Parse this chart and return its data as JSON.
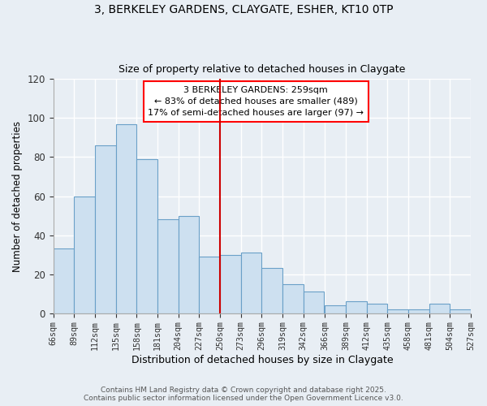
{
  "title": "3, BERKELEY GARDENS, CLAYGATE, ESHER, KT10 0TP",
  "subtitle": "Size of property relative to detached houses in Claygate",
  "xlabel": "Distribution of detached houses by size in Claygate",
  "ylabel": "Number of detached properties",
  "bar_color": "#cde0f0",
  "bar_edge_color": "#6aa0c8",
  "background_color": "#e8eef4",
  "plot_bg_color": "#e8eef4",
  "grid_color": "#ffffff",
  "vline_x": 250,
  "vline_color": "#cc0000",
  "annotation_title": "3 BERKELEY GARDENS: 259sqm",
  "annotation_line1": "← 83% of detached houses are smaller (489)",
  "annotation_line2": "17% of semi-detached houses are larger (97) →",
  "footer1": "Contains HM Land Registry data © Crown copyright and database right 2025.",
  "footer2": "Contains public sector information licensed under the Open Government Licence v3.0.",
  "bins": [
    66,
    89,
    112,
    135,
    158,
    181,
    204,
    227,
    250,
    273,
    296,
    319,
    342,
    366,
    389,
    412,
    435,
    458,
    481,
    504,
    527
  ],
  "counts": [
    33,
    60,
    86,
    97,
    79,
    48,
    50,
    29,
    30,
    31,
    23,
    15,
    11,
    4,
    6,
    5,
    2,
    2,
    5,
    2
  ],
  "ylim": [
    0,
    120
  ],
  "yticks": [
    0,
    20,
    40,
    60,
    80,
    100,
    120
  ]
}
